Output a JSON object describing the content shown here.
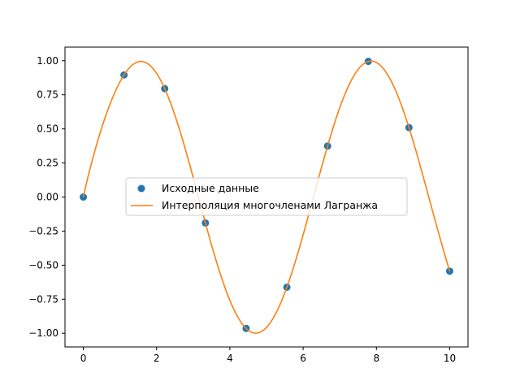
{
  "chart_data": {
    "type": "line",
    "title": "",
    "xlabel": "",
    "ylabel": "",
    "xlim": [
      -0.5,
      10.5
    ],
    "ylim": [
      -1.1,
      1.1
    ],
    "x_ticks": [
      0,
      2,
      4,
      6,
      8,
      10
    ],
    "x_tick_labels": [
      "0",
      "2",
      "4",
      "6",
      "8",
      "10"
    ],
    "y_ticks": [
      1.0,
      0.75,
      0.5,
      0.25,
      0.0,
      -0.25,
      -0.5,
      -0.75,
      -1.0
    ],
    "y_tick_labels": [
      "1.00",
      "0.75",
      "0.50",
      "0.25",
      "0.00",
      "−0.25",
      "−0.50",
      "−0.75",
      "−1.00"
    ],
    "grid": false,
    "legend_position": "center-left",
    "series": [
      {
        "name": "Исходные данные",
        "type": "scatter",
        "color": "#1f77b4",
        "x": [
          0,
          1.111,
          2.222,
          3.333,
          4.444,
          5.556,
          6.667,
          7.778,
          8.889,
          10.0
        ],
        "y": [
          0.0,
          0.8961,
          0.7952,
          -0.1906,
          -0.9643,
          -0.6617,
          0.3741,
          0.9953,
          0.5096,
          -0.544
        ]
      },
      {
        "name": "Интерполяция многочленами Лагранжа",
        "type": "line",
        "color": "#ff7f0e",
        "function": "lagrange interpolation of the data points",
        "x_range": [
          0,
          10
        ]
      }
    ]
  }
}
